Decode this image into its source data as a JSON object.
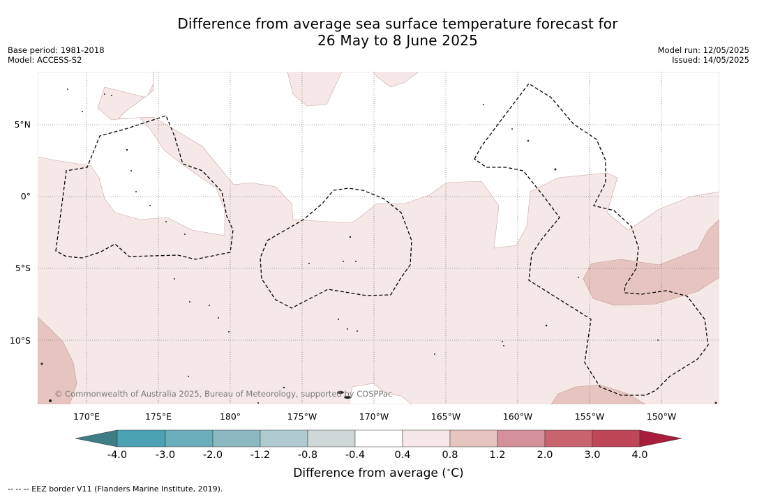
{
  "title": {
    "line1": "Difference from average sea surface temperature forecast for",
    "line2": "26 May to 8 June 2025"
  },
  "meta_left": {
    "base_period": "Base period: 1981-2018",
    "model": "Model: ACCESS-S2"
  },
  "meta_right": {
    "model_run": "Model run: 12/05/2025",
    "issued": "Issued: 14/05/2025"
  },
  "map": {
    "latitude_labels": [
      "5°N",
      "0°",
      "5°S",
      "10°S"
    ],
    "longitude_labels": [
      "170°E",
      "175°E",
      "180°",
      "175°W",
      "170°W",
      "165°W",
      "160°W",
      "155°W",
      "150°W"
    ],
    "copyright": "© Commonwealth of Australia 2025, Bureau of Meteorology, supported by COSPPac",
    "anomaly_colors": {
      "0.4_to_0.8": "#f5e8e6",
      "0.8_to_1.2": "#e6c5c1"
    }
  },
  "colorbar": {
    "tick_labels": [
      "-4.0",
      "-3.0",
      "-2.0",
      "-1.2",
      "-0.8",
      "-0.4",
      "0.4",
      "0.8",
      "1.2",
      "2.0",
      "3.0",
      "4.0"
    ],
    "colors": [
      "#3f7d86",
      "#4aa2b3",
      "#6aadbb",
      "#8cb8c2",
      "#afcbcf",
      "#cfd7d8",
      "#ffffff",
      "#f5e8e6",
      "#e6c5c1",
      "#d4909a",
      "#c9646f",
      "#bf4656",
      "#a81d3c"
    ],
    "title": "Difference from average ($^\\circ$C)"
  },
  "footer": {
    "legend_line": "--  --  -- EEZ border V11 (Flanders Marine Institute, 2019)."
  }
}
